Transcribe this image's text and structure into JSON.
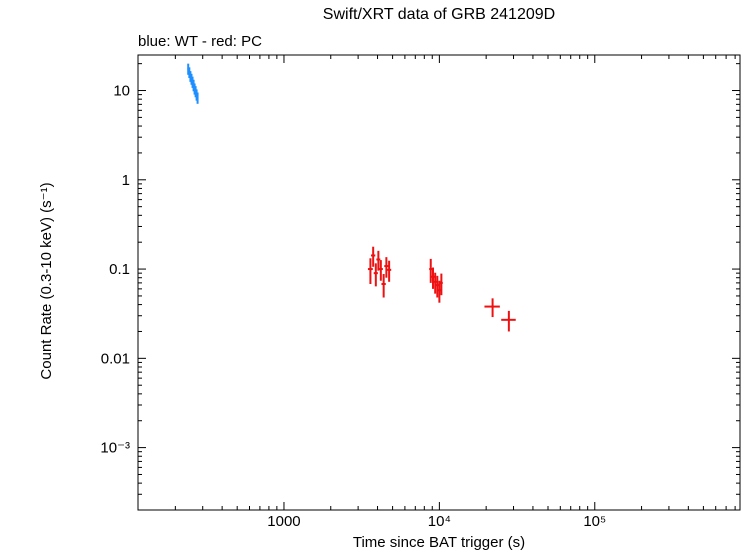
{
  "chart_data": {
    "type": "scatter",
    "title": "Swift/XRT data of GRB 241209D",
    "legend_note": "blue: WT - red: PC",
    "xlabel": "Time since BAT trigger (s)",
    "ylabel": "Count Rate (0.3-10 keV) (s⁻¹)",
    "xscale": "log",
    "yscale": "log",
    "xlim": [
      115,
      860000
    ],
    "ylim": [
      0.0002,
      25
    ],
    "grid": false,
    "x_ticks": [
      {
        "v": 1000,
        "label": "1000"
      },
      {
        "v": 10000,
        "label": "10⁴"
      },
      {
        "v": 100000,
        "label": "10⁵"
      }
    ],
    "y_ticks": [
      {
        "v": 10,
        "label": "10"
      },
      {
        "v": 1,
        "label": "1"
      },
      {
        "v": 0.1,
        "label": "0.1"
      },
      {
        "v": 0.01,
        "label": "0.01"
      },
      {
        "v": 0.001,
        "label": "10⁻³"
      }
    ],
    "series": [
      {
        "name": "WT",
        "mode": "Windowed Timing",
        "color": "#1e8fff",
        "points": [
          [
            242,
            17.5,
            2.5,
            3
          ],
          [
            246,
            16.0,
            2.2,
            3
          ],
          [
            250,
            14.5,
            2.0,
            3
          ],
          [
            254,
            13.5,
            1.9,
            3
          ],
          [
            258,
            12.5,
            1.8,
            3
          ],
          [
            262,
            11.5,
            1.7,
            3
          ],
          [
            266,
            10.5,
            1.5,
            3
          ],
          [
            270,
            9.8,
            1.4,
            3
          ],
          [
            274,
            9.0,
            1.3,
            3
          ],
          [
            278,
            8.3,
            1.2,
            3
          ]
        ]
      },
      {
        "name": "PC",
        "mode": "Photon Counting",
        "color": "#ee1111",
        "points": [
          [
            3600,
            0.1,
            0.032,
            130
          ],
          [
            3750,
            0.142,
            0.036,
            120
          ],
          [
            3900,
            0.09,
            0.026,
            120
          ],
          [
            4050,
            0.128,
            0.032,
            120
          ],
          [
            4200,
            0.1,
            0.026,
            130
          ],
          [
            4380,
            0.068,
            0.02,
            140
          ],
          [
            4560,
            0.108,
            0.028,
            140
          ],
          [
            4750,
            0.098,
            0.026,
            150
          ],
          [
            8800,
            0.1,
            0.03,
            200
          ],
          [
            9100,
            0.082,
            0.022,
            200
          ],
          [
            9400,
            0.072,
            0.019,
            200
          ],
          [
            9700,
            0.066,
            0.018,
            220
          ],
          [
            10000,
            0.058,
            0.016,
            220
          ],
          [
            10300,
            0.07,
            0.019,
            220
          ],
          [
            22000,
            0.038,
            0.009,
            2500
          ],
          [
            28000,
            0.027,
            0.007,
            3000
          ]
        ]
      }
    ]
  }
}
